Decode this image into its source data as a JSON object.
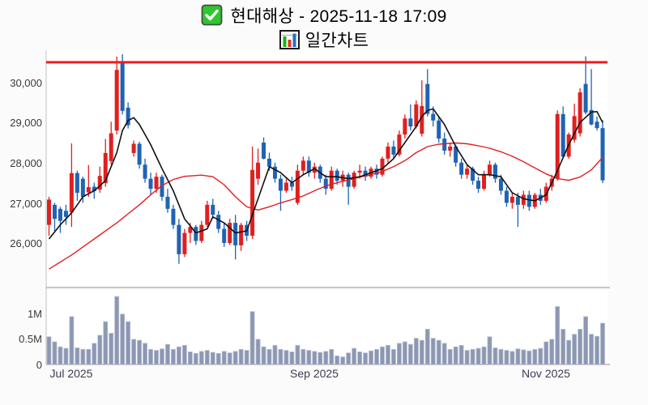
{
  "header": {
    "checkbox_icon": "checked-green-checkbox",
    "title": "현대해상 - 2025-11-18 17:09",
    "subtitle_icon": "mini-bar-chart",
    "subtitle": "일간차트"
  },
  "chart_data": {
    "type": "candlestick",
    "title": "현대해상 - 2025-11-18 17:09",
    "subtitle": "일간차트",
    "grid": false,
    "legend": "none",
    "resistance_line": 30500,
    "price_axis": {
      "range": [
        24950,
        30800
      ],
      "ticks": [
        30000,
        29000,
        28000,
        27000,
        26000
      ],
      "labels": [
        "30,000",
        "29,000",
        "28,000",
        "27,000",
        "26,000"
      ]
    },
    "volume_axis": {
      "range": [
        0,
        1480000
      ],
      "ticks": [
        1000000,
        500000,
        0
      ],
      "labels": [
        "1M",
        "0.5M",
        "0"
      ]
    },
    "x_ticks": [
      {
        "index": 4,
        "label": "Jul 2025"
      },
      {
        "index": 47,
        "label": "Sep 2025"
      },
      {
        "index": 88,
        "label": "Nov 2025"
      }
    ],
    "volume_in_thousands": true,
    "series": {
      "candles_ohlcv": [
        [
          26450,
          27150,
          26180,
          27080,
          550
        ],
        [
          26950,
          27000,
          26300,
          26600,
          450
        ],
        [
          26850,
          26900,
          26250,
          26550,
          350
        ],
        [
          26800,
          26950,
          26450,
          26650,
          320
        ],
        [
          26760,
          28480,
          26400,
          27740,
          950
        ],
        [
          27740,
          27800,
          27050,
          27250,
          330
        ],
        [
          27600,
          27650,
          27000,
          27150,
          300
        ],
        [
          27260,
          27940,
          27150,
          27390,
          300
        ],
        [
          27400,
          27500,
          27100,
          27290,
          420
        ],
        [
          27330,
          27900,
          27250,
          27670,
          580
        ],
        [
          27490,
          28590,
          27400,
          28240,
          850
        ],
        [
          28040,
          29020,
          27950,
          28730,
          620
        ],
        [
          28800,
          30640,
          28700,
          30310,
          1350
        ],
        [
          30500,
          30700,
          29200,
          29290,
          1000
        ],
        [
          29370,
          29500,
          28850,
          28930,
          850
        ],
        [
          28240,
          28550,
          28150,
          28470,
          500
        ],
        [
          28470,
          28520,
          27850,
          27950,
          480
        ],
        [
          27950,
          28100,
          27500,
          27600,
          420
        ],
        [
          27600,
          27750,
          27200,
          27350,
          300
        ],
        [
          27350,
          27750,
          27250,
          27650,
          280
        ],
        [
          27650,
          27700,
          27050,
          27150,
          310
        ],
        [
          27150,
          27350,
          26750,
          26850,
          400
        ],
        [
          26850,
          26950,
          26350,
          26450,
          300
        ],
        [
          26450,
          26600,
          25480,
          25720,
          350
        ],
        [
          25720,
          26350,
          25650,
          26250,
          380
        ],
        [
          26250,
          26500,
          26000,
          26400,
          250
        ],
        [
          26400,
          26450,
          25950,
          26050,
          220
        ],
        [
          26050,
          26550,
          26000,
          26450,
          260
        ],
        [
          26450,
          27050,
          26400,
          26950,
          280
        ],
        [
          26950,
          27100,
          26600,
          26700,
          240
        ],
        [
          26700,
          26800,
          26250,
          26350,
          220
        ],
        [
          26350,
          26500,
          25900,
          26000,
          260
        ],
        [
          26000,
          26600,
          25950,
          26500,
          230
        ],
        [
          26500,
          26700,
          25590,
          25940,
          260
        ],
        [
          25940,
          26500,
          25800,
          26450,
          300
        ],
        [
          26450,
          26550,
          26050,
          26180,
          280
        ],
        [
          26180,
          28400,
          26100,
          27820,
          1050
        ],
        [
          27600,
          28350,
          27450,
          28000,
          500
        ],
        [
          28500,
          28630,
          28080,
          28100,
          350
        ],
        [
          28100,
          28250,
          27800,
          27900,
          300
        ],
        [
          27900,
          28000,
          27500,
          27600,
          380
        ],
        [
          27600,
          27700,
          26800,
          27300,
          300
        ],
        [
          27300,
          27600,
          27250,
          27500,
          280
        ],
        [
          27500,
          27650,
          27300,
          27400,
          250
        ],
        [
          27000,
          27950,
          26950,
          27800,
          380
        ],
        [
          27800,
          28150,
          27700,
          28050,
          300
        ],
        [
          28050,
          28150,
          27650,
          27750,
          280
        ],
        [
          27750,
          28000,
          27600,
          27900,
          260
        ],
        [
          27900,
          27950,
          27500,
          27600,
          240
        ],
        [
          27600,
          27700,
          27200,
          27350,
          260
        ],
        [
          27350,
          27900,
          27300,
          27800,
          300
        ],
        [
          27800,
          27850,
          27450,
          27550,
          170
        ],
        [
          27550,
          27800,
          27400,
          27700,
          150
        ],
        [
          27700,
          27750,
          26950,
          27400,
          230
        ],
        [
          27400,
          27800,
          27350,
          27750,
          320
        ],
        [
          27750,
          27950,
          27600,
          27800,
          250
        ],
        [
          27800,
          27900,
          27550,
          27650,
          230
        ],
        [
          27650,
          27900,
          27600,
          27850,
          270
        ],
        [
          27850,
          27950,
          27600,
          27700,
          300
        ],
        [
          27700,
          28150,
          27650,
          28100,
          350
        ],
        [
          28100,
          28500,
          28000,
          28400,
          380
        ],
        [
          28400,
          28550,
          28100,
          28200,
          300
        ],
        [
          28200,
          28800,
          28150,
          28700,
          420
        ],
        [
          28700,
          29200,
          28600,
          29100,
          450
        ],
        [
          29100,
          29450,
          28800,
          28900,
          400
        ],
        [
          28900,
          29550,
          28850,
          29450,
          520
        ],
        [
          28720,
          30050,
          28650,
          29410,
          480
        ],
        [
          29960,
          30330,
          29150,
          29215,
          700
        ],
        [
          29215,
          29400,
          28900,
          29050,
          520
        ],
        [
          29050,
          29150,
          28500,
          28600,
          480
        ],
        [
          28600,
          28750,
          28200,
          28300,
          420
        ],
        [
          28300,
          28500,
          28150,
          28400,
          300
        ],
        [
          28400,
          28450,
          27900,
          28000,
          350
        ],
        [
          28000,
          28100,
          27600,
          27700,
          380
        ],
        [
          27700,
          27950,
          27600,
          27850,
          280
        ],
        [
          27850,
          27900,
          27450,
          27550,
          300
        ],
        [
          27550,
          27650,
          27250,
          27350,
          320
        ],
        [
          27350,
          27800,
          27300,
          27700,
          350
        ],
        [
          27700,
          28050,
          27650,
          27950,
          550
        ],
        [
          27950,
          28000,
          27500,
          27600,
          330
        ],
        [
          27600,
          27700,
          27200,
          27300,
          300
        ],
        [
          27300,
          27400,
          26900,
          27000,
          280
        ],
        [
          27000,
          27250,
          26850,
          27150,
          260
        ],
        [
          27150,
          27250,
          26400,
          26950,
          310
        ],
        [
          26950,
          27300,
          26850,
          27200,
          290
        ],
        [
          27200,
          27300,
          26800,
          26900,
          270
        ],
        [
          26900,
          27250,
          26850,
          27200,
          300
        ],
        [
          27200,
          27350,
          26950,
          27050,
          320
        ],
        [
          27050,
          27500,
          27000,
          27400,
          450
        ],
        [
          27400,
          27700,
          27300,
          27600,
          500
        ],
        [
          27600,
          29300,
          27550,
          29210,
          1150
        ],
        [
          29210,
          29400,
          28100,
          28150,
          700
        ],
        [
          28150,
          28750,
          28100,
          28700,
          480
        ],
        [
          28570,
          29470,
          28500,
          29160,
          600
        ],
        [
          28730,
          29850,
          28650,
          29750,
          700
        ],
        [
          29960,
          30650,
          29200,
          29250,
          950
        ],
        [
          29310,
          30330,
          28930,
          28950,
          600
        ],
        [
          29020,
          29150,
          28800,
          28860,
          560
        ],
        [
          28860,
          29060,
          27490,
          27560,
          820
        ]
      ],
      "ma_short_points": [
        [
          0,
          26100
        ],
        [
          2,
          26450
        ],
        [
          4,
          26750
        ],
        [
          6,
          27150
        ],
        [
          8,
          27300
        ],
        [
          10,
          27550
        ],
        [
          12,
          28250
        ],
        [
          13,
          28800
        ],
        [
          14,
          29050
        ],
        [
          15,
          29120
        ],
        [
          16,
          28950
        ],
        [
          18,
          28450
        ],
        [
          20,
          27850
        ],
        [
          22,
          27300
        ],
        [
          24,
          26600
        ],
        [
          26,
          26250
        ],
        [
          28,
          26350
        ],
        [
          29,
          26650
        ],
        [
          31,
          26500
        ],
        [
          33,
          26250
        ],
        [
          35,
          26300
        ],
        [
          36,
          26700
        ],
        [
          38,
          27500
        ],
        [
          39,
          27900
        ],
        [
          41,
          27750
        ],
        [
          43,
          27500
        ],
        [
          45,
          27700
        ],
        [
          47,
          27850
        ],
        [
          49,
          27650
        ],
        [
          51,
          27650
        ],
        [
          53,
          27600
        ],
        [
          55,
          27650
        ],
        [
          57,
          27750
        ],
        [
          59,
          27850
        ],
        [
          61,
          28100
        ],
        [
          63,
          28500
        ],
        [
          65,
          28900
        ],
        [
          66,
          29150
        ],
        [
          67,
          29300
        ],
        [
          68,
          29340
        ],
        [
          70,
          28950
        ],
        [
          72,
          28400
        ],
        [
          74,
          27950
        ],
        [
          76,
          27700
        ],
        [
          78,
          27700
        ],
        [
          80,
          27650
        ],
        [
          82,
          27250
        ],
        [
          84,
          27100
        ],
        [
          86,
          27050
        ],
        [
          88,
          27200
        ],
        [
          90,
          27800
        ],
        [
          92,
          28450
        ],
        [
          94,
          29000
        ],
        [
          96,
          29260
        ],
        [
          97,
          29270
        ],
        [
          98,
          29000
        ]
      ],
      "ma_long_points": [
        [
          0,
          25350
        ],
        [
          4,
          25700
        ],
        [
          8,
          26100
        ],
        [
          12,
          26500
        ],
        [
          16,
          26950
        ],
        [
          18,
          27200
        ],
        [
          20,
          27430
        ],
        [
          22,
          27580
        ],
        [
          24,
          27660
        ],
        [
          27,
          27690
        ],
        [
          29,
          27650
        ],
        [
          31,
          27450
        ],
        [
          33,
          27150
        ],
        [
          35,
          26900
        ],
        [
          37,
          26820
        ],
        [
          39,
          26900
        ],
        [
          41,
          27000
        ],
        [
          43,
          27080
        ],
        [
          45,
          27170
        ],
        [
          47,
          27300
        ],
        [
          49,
          27420
        ],
        [
          51,
          27500
        ],
        [
          53,
          27570
        ],
        [
          55,
          27640
        ],
        [
          57,
          27700
        ],
        [
          59,
          27780
        ],
        [
          61,
          27900
        ],
        [
          63,
          28050
        ],
        [
          65,
          28250
        ],
        [
          67,
          28400
        ],
        [
          69,
          28460
        ],
        [
          72,
          28490
        ],
        [
          74,
          28470
        ],
        [
          76,
          28420
        ],
        [
          78,
          28360
        ],
        [
          80,
          28270
        ],
        [
          82,
          28160
        ],
        [
          84,
          28020
        ],
        [
          86,
          27870
        ],
        [
          88,
          27720
        ],
        [
          90,
          27600
        ],
        [
          92,
          27560
        ],
        [
          94,
          27640
        ],
        [
          96,
          27820
        ],
        [
          98,
          28130
        ]
      ]
    },
    "colors": {
      "up": "#e01f1f",
      "down": "#1f63b5",
      "ma_short": "#111111",
      "ma_long": "#e02020",
      "resistance": "#ee1c1c",
      "volume": "#8c97b2",
      "volume_edge": "#b3bacd",
      "axis_text": "#3a3a3a",
      "xlabel_text": "#3b3b52",
      "checkbox_green": "#2dc62d",
      "icon_bar_green": "#1fae1f",
      "icon_bar_red": "#e03322",
      "icon_bar_blue": "#1f6fd0"
    }
  }
}
